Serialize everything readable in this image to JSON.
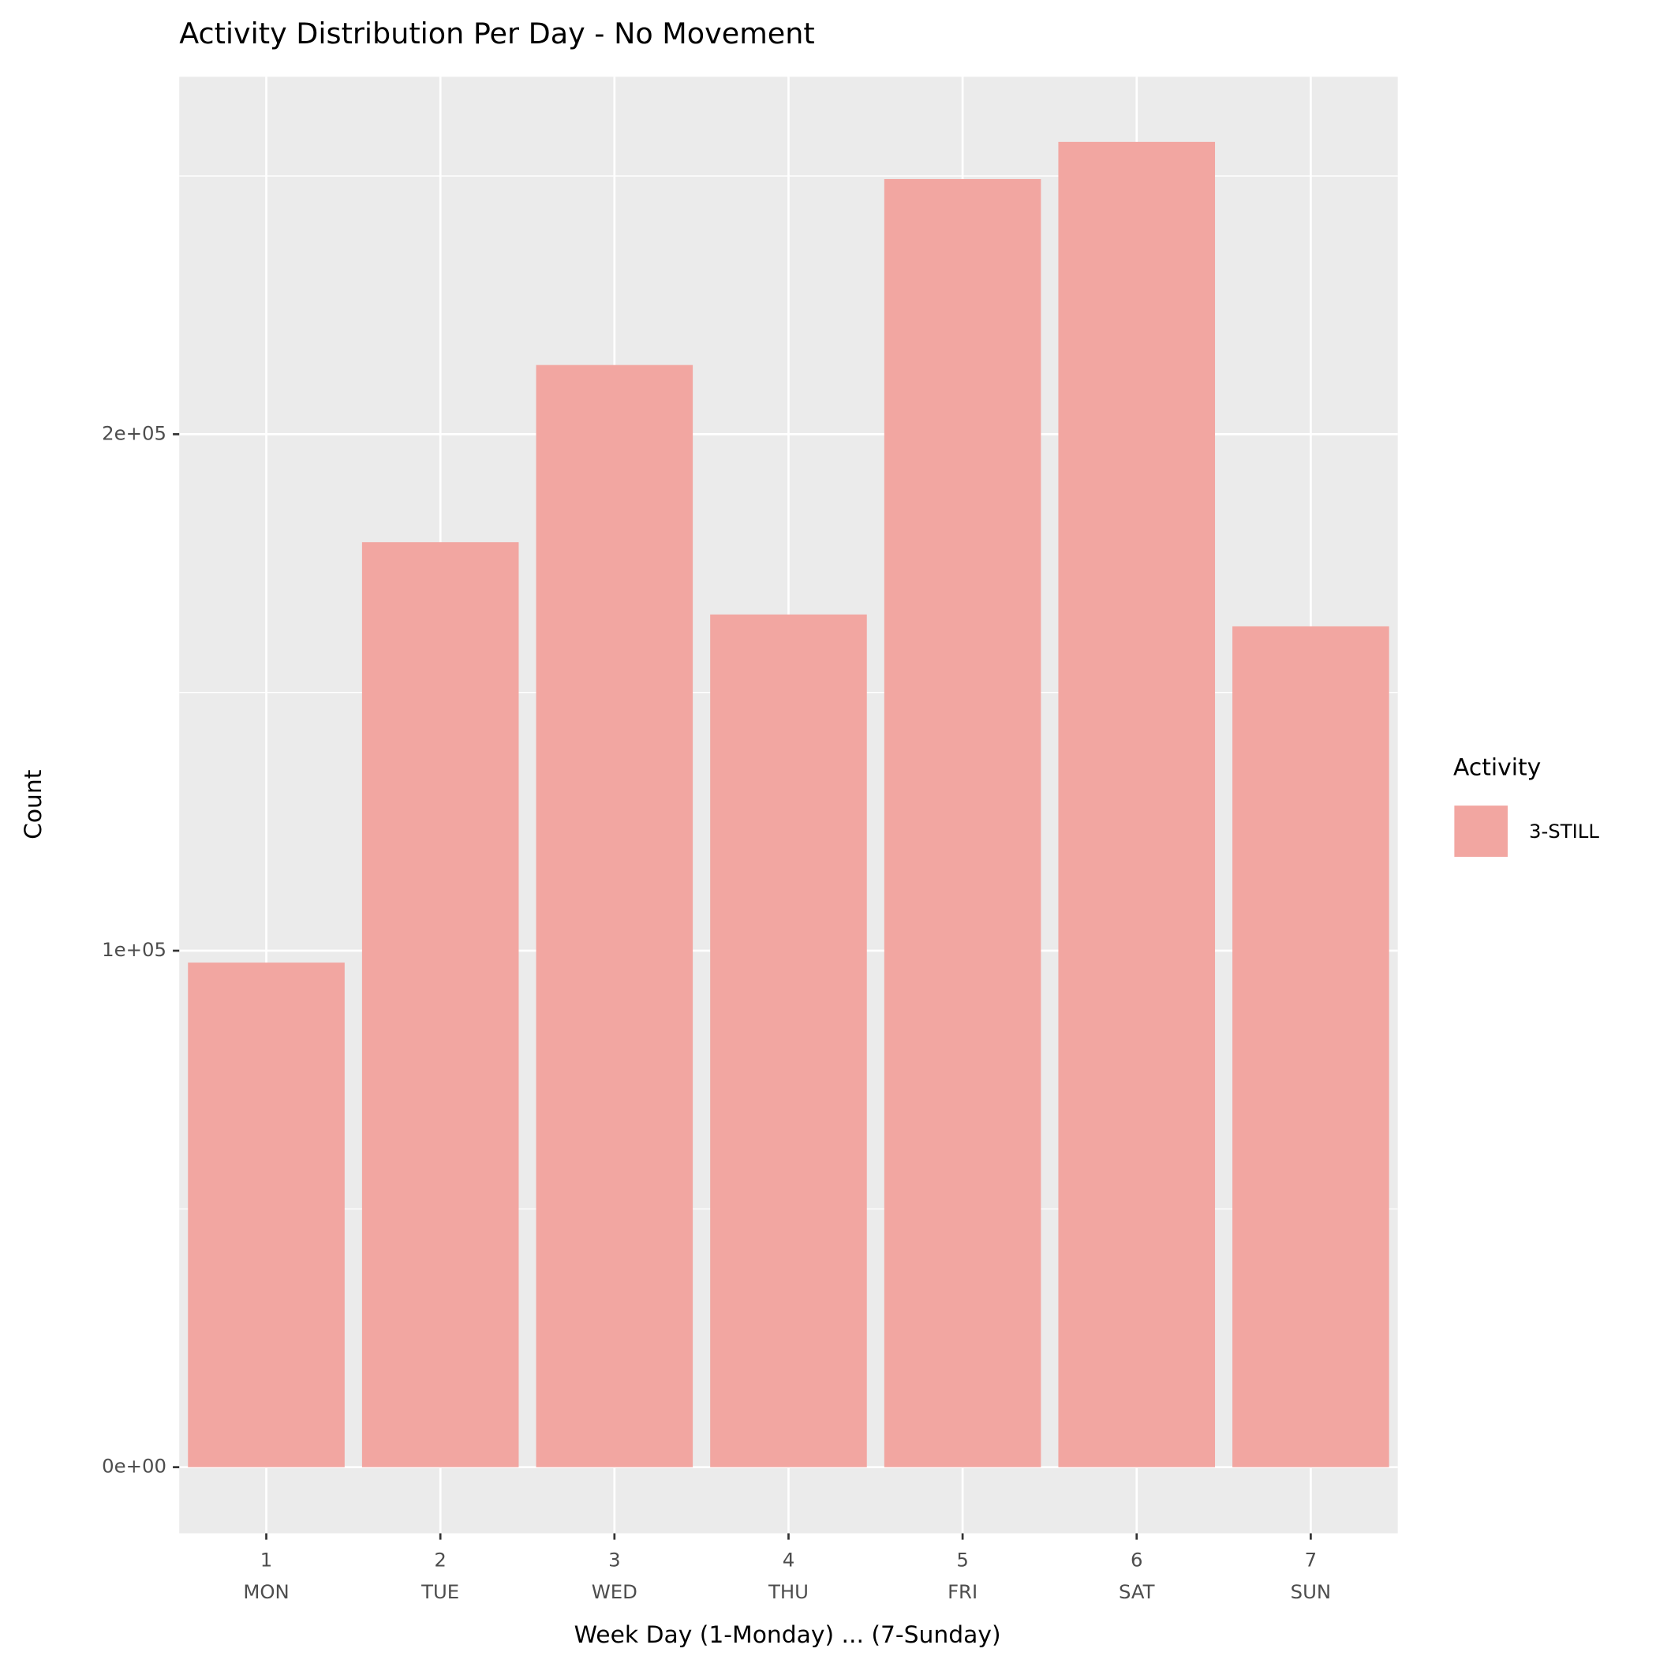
{
  "chart_data": {
    "type": "bar",
    "title": "Activity Distribution Per Day - No Movement",
    "x_label": "Week Day (1-Monday) ... (7-Sunday)",
    "y_label": "Count",
    "categories": [
      "1",
      "2",
      "3",
      "4",
      "5",
      "6",
      "7"
    ],
    "category_names": [
      "MON",
      "TUE",
      "WED",
      "THU",
      "FRI",
      "SAT",
      "SUN"
    ],
    "legend_title": "Activity",
    "legend_position": "right",
    "series": [
      {
        "name": "3-STILL",
        "color": "#f2a6a1",
        "values": [
          97700,
          179100,
          213400,
          165100,
          249400,
          256600,
          162800
        ]
      }
    ],
    "ylim": [
      -12800,
      269200
    ],
    "yticks": [
      {
        "value": 0,
        "label": "0e+00"
      },
      {
        "value": 100000,
        "label": "1e+05"
      },
      {
        "value": 200000,
        "label": "2e+05"
      }
    ],
    "y_minor_ticks": [
      50000,
      150000,
      250000
    ],
    "grid": true
  }
}
